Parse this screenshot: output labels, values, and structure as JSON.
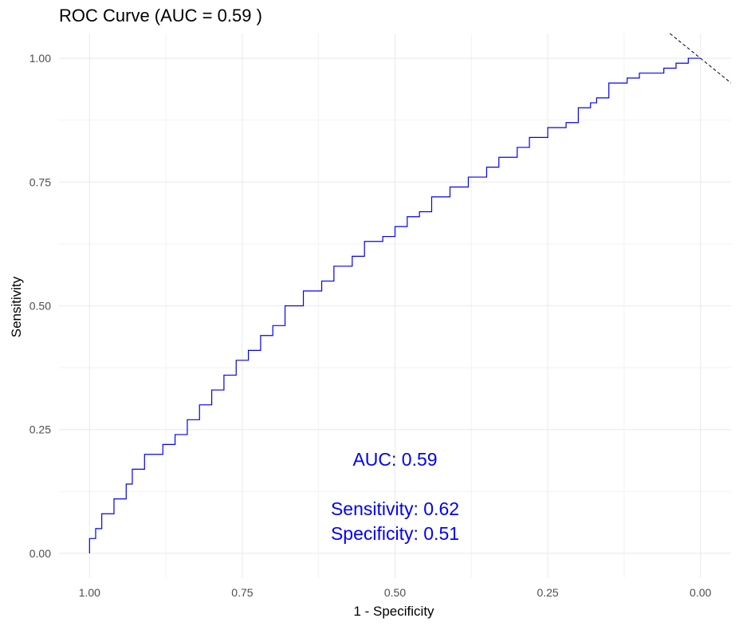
{
  "chart_data": {
    "type": "line",
    "title": "ROC Curve (AUC = 0.59 )",
    "xlabel": "1 - Specificity",
    "ylabel": "Sensitivity",
    "x_axis_reversed": true,
    "xlim": [
      1.05,
      -0.05
    ],
    "ylim": [
      -0.05,
      1.05
    ],
    "x_ticks": [
      1.0,
      0.75,
      0.5,
      0.25,
      0.0
    ],
    "x_tick_labels": [
      "1.00",
      "0.75",
      "0.50",
      "0.25",
      "0.00"
    ],
    "y_ticks": [
      0.0,
      0.25,
      0.5,
      0.75,
      1.0
    ],
    "y_tick_labels": [
      "0.00",
      "0.25",
      "0.50",
      "0.75",
      "1.00"
    ],
    "grid": true,
    "line_color": "#0000ff",
    "series": [
      {
        "x": [
          1.0,
          0.99,
          0.98,
          0.96,
          0.94,
          0.93,
          0.91,
          0.88,
          0.86,
          0.84,
          0.82,
          0.8,
          0.78,
          0.76,
          0.74,
          0.72,
          0.7,
          0.68,
          0.65,
          0.62,
          0.6,
          0.57,
          0.55,
          0.52,
          0.5,
          0.48,
          0.46,
          0.44,
          0.41,
          0.38,
          0.35,
          0.33,
          0.3,
          0.28,
          0.25,
          0.22,
          0.2,
          0.18,
          0.17,
          0.15,
          0.12,
          0.1,
          0.08,
          0.06,
          0.04,
          0.02,
          0.01,
          0.0
        ],
        "y": [
          0.0,
          0.03,
          0.05,
          0.08,
          0.11,
          0.14,
          0.17,
          0.2,
          0.22,
          0.24,
          0.27,
          0.3,
          0.33,
          0.36,
          0.39,
          0.41,
          0.44,
          0.46,
          0.5,
          0.53,
          0.55,
          0.58,
          0.6,
          0.63,
          0.64,
          0.66,
          0.68,
          0.69,
          0.72,
          0.74,
          0.76,
          0.78,
          0.8,
          0.82,
          0.84,
          0.86,
          0.87,
          0.9,
          0.91,
          0.92,
          0.95,
          0.96,
          0.97,
          0.97,
          0.98,
          0.99,
          1.0,
          1.0
        ]
      }
    ],
    "reference_line": {
      "slope": 1,
      "intercept": 1,
      "style": "dashed",
      "color": "#000000"
    },
    "annotations": [
      {
        "text": "AUC: 0.59",
        "x": 0.5,
        "y": 0.19,
        "color": "#0000ff"
      },
      {
        "text": "Sensitivity: 0.62",
        "x": 0.5,
        "y": 0.09,
        "color": "#0000ff"
      },
      {
        "text": "Specificity: 0.51",
        "x": 0.5,
        "y": 0.04,
        "color": "#0000ff"
      }
    ]
  }
}
